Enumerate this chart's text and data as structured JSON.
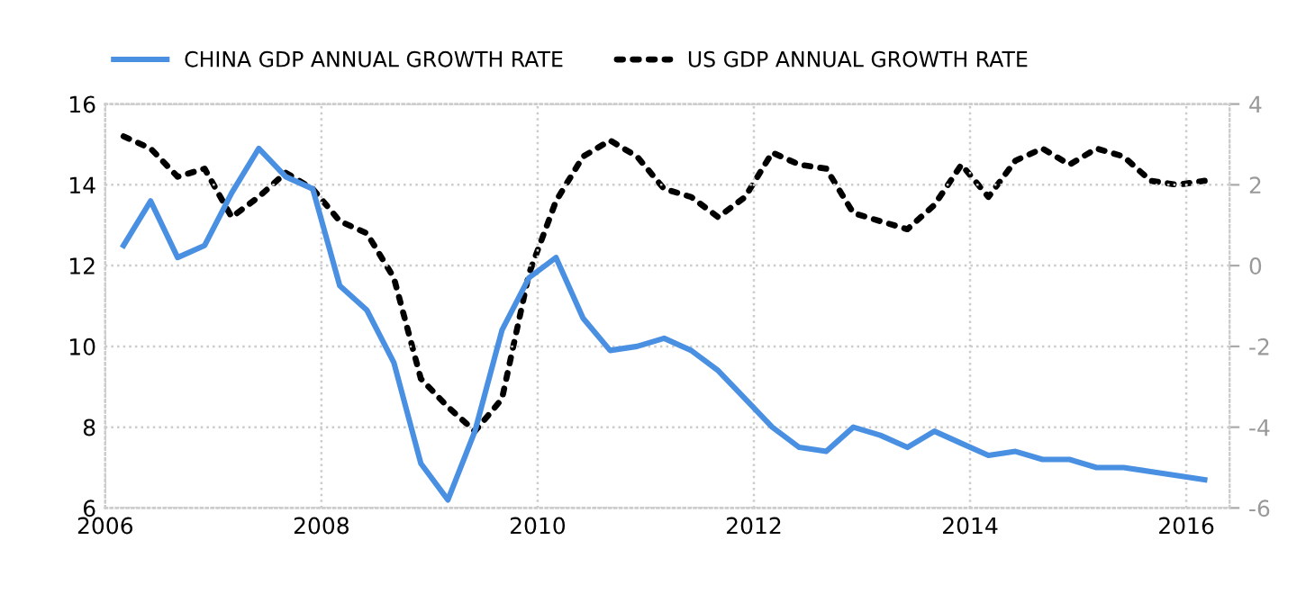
{
  "chart_data": {
    "type": "line",
    "x": [
      2006.17,
      2006.42,
      2006.67,
      2006.92,
      2007.17,
      2007.42,
      2007.67,
      2007.92,
      2008.17,
      2008.42,
      2008.67,
      2008.92,
      2009.17,
      2009.42,
      2009.67,
      2009.92,
      2010.17,
      2010.42,
      2010.67,
      2010.92,
      2011.17,
      2011.42,
      2011.67,
      2011.92,
      2012.17,
      2012.42,
      2012.67,
      2012.92,
      2013.17,
      2013.42,
      2013.67,
      2013.92,
      2014.17,
      2014.42,
      2014.67,
      2014.92,
      2015.17,
      2015.42,
      2015.67,
      2015.92,
      2016.17
    ],
    "series": [
      {
        "name": "CHINA GDP ANNUAL GROWTH RATE",
        "color": "#4a90e2",
        "line_style": "solid",
        "values": [
          12.5,
          13.6,
          12.2,
          12.5,
          13.8,
          14.9,
          14.2,
          13.9,
          11.5,
          10.9,
          9.6,
          7.1,
          6.2,
          7.9,
          10.4,
          11.7,
          12.2,
          10.7,
          9.9,
          10.0,
          10.2,
          9.9,
          9.4,
          8.7,
          8.0,
          7.5,
          7.4,
          8.0,
          7.8,
          7.5,
          7.9,
          7.6,
          7.3,
          7.4,
          7.2,
          7.2,
          7.0,
          7.0,
          6.9,
          6.8,
          6.7
        ]
      },
      {
        "name": "US GDP ANNUAL GROWTH RATE",
        "color": "#000000",
        "line_style": "dotted",
        "axis": "y2",
        "values": [
          3.2,
          2.9,
          2.2,
          2.4,
          1.2,
          1.7,
          2.3,
          1.9,
          1.1,
          0.8,
          -0.3,
          -2.8,
          -3.5,
          -4.1,
          -3.3,
          -0.2,
          1.6,
          2.7,
          3.1,
          2.7,
          1.9,
          1.7,
          1.2,
          1.7,
          2.8,
          2.5,
          2.4,
          1.3,
          1.1,
          0.9,
          1.5,
          2.5,
          1.7,
          2.6,
          2.9,
          2.5,
          2.9,
          2.7,
          2.1,
          2.0,
          2.1
        ]
      }
    ],
    "xlim": [
      2006,
      2016.4
    ],
    "xticks": [
      2006,
      2008,
      2010,
      2012,
      2014,
      2016
    ],
    "ylim": [
      6,
      16
    ],
    "yticks": [
      6,
      8,
      10,
      12,
      14,
      16
    ],
    "y2lim": [
      -6,
      4
    ],
    "y2ticks": [
      {
        "value": -6,
        "label": "-6"
      },
      {
        "value": -4,
        "label": "-4"
      },
      {
        "value": -2,
        "label": "-2"
      },
      0,
      2,
      4
    ],
    "grid": true,
    "legend": "top left",
    "marker": "none"
  }
}
